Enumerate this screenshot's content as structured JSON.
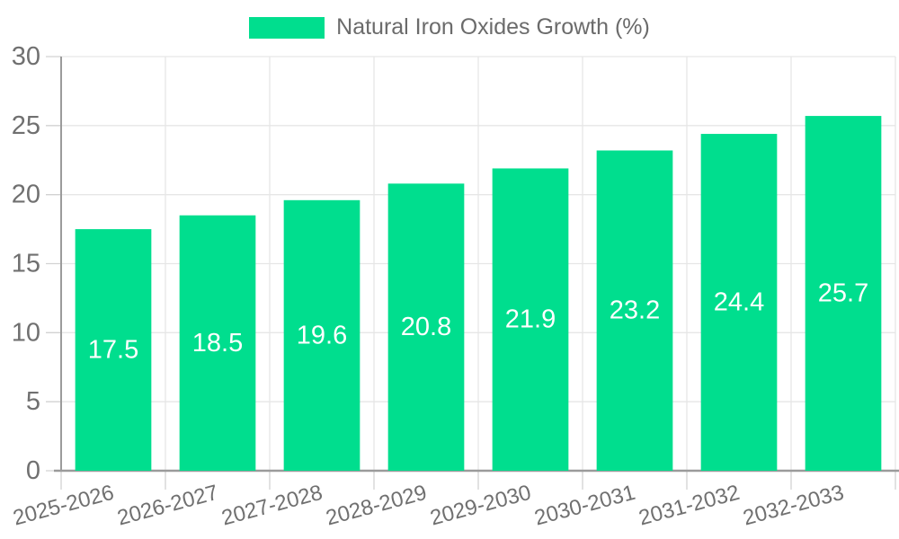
{
  "chart_data": {
    "type": "bar",
    "title": "",
    "legend": "Natural Iron Oxides Growth (%)",
    "legend_position": "top-center",
    "categories": [
      "2025-2026",
      "2026-2027",
      "2027-2028",
      "2028-2029",
      "2029-2030",
      "2030-2031",
      "2031-2032",
      "2032-2033"
    ],
    "values": [
      17.5,
      18.5,
      19.6,
      20.8,
      21.9,
      23.2,
      24.4,
      25.7
    ],
    "value_labels": [
      "17.5",
      "18.5",
      "19.6",
      "20.8",
      "21.9",
      "23.2",
      "24.4",
      "25.7"
    ],
    "ytick_labels": [
      "0",
      "5",
      "10",
      "15",
      "20",
      "25",
      "30"
    ],
    "yticks": [
      0,
      5,
      10,
      15,
      20,
      25,
      30
    ],
    "ylim": [
      0,
      30
    ],
    "xlabel": "",
    "ylabel": "",
    "grid": true,
    "x_label_rotation_deg": -15,
    "colors": {
      "bar": "#00de8e",
      "grid": "#e6e6e6",
      "tick": "#d2d2d2",
      "axis": "#9b9b9b",
      "axis_text": "#707070",
      "legend_text": "#6b6b6b",
      "value_label": "#ffffff",
      "background": "#ffffff"
    }
  }
}
